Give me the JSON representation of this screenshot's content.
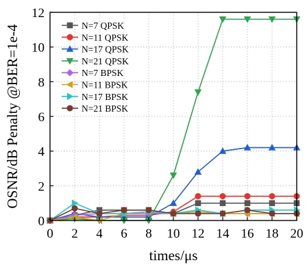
{
  "chart_data": {
    "type": "line",
    "xlabel": "times/μs",
    "ylabel": "OSNR/dB Penalty @BER=1e-4",
    "xlim": [
      0,
      20
    ],
    "ylim": [
      0,
      12
    ],
    "xticks": [
      0,
      2,
      4,
      6,
      8,
      10,
      12,
      14,
      16,
      18,
      20
    ],
    "yticks": [
      0,
      2,
      4,
      6,
      8,
      10,
      12
    ],
    "grid": true,
    "legend_position": "top-left",
    "x": [
      0,
      2,
      4,
      6,
      8,
      10,
      12,
      14,
      16,
      18,
      20
    ],
    "series": [
      {
        "name": "N=7   QPSK",
        "color": "#555555",
        "marker": "square",
        "values": [
          0,
          0.3,
          0.6,
          0.6,
          0.6,
          0.4,
          1.0,
          1.0,
          1.0,
          1.0,
          1.0
        ]
      },
      {
        "name": "N=11  QPSK",
        "color": "#e8322e",
        "marker": "circle",
        "values": [
          0,
          0.2,
          0.2,
          0.3,
          0.3,
          0.5,
          1.4,
          1.4,
          1.4,
          1.4,
          1.4
        ]
      },
      {
        "name": "N=17  QPSK",
        "color": "#1f5fd6",
        "marker": "triangle-up",
        "values": [
          0,
          0.4,
          0.2,
          0.2,
          0.2,
          1.0,
          2.8,
          4.0,
          4.2,
          4.2,
          4.2
        ]
      },
      {
        "name": "N=21  QPSK",
        "color": "#2ea64f",
        "marker": "triangle-down",
        "values": [
          0,
          0.1,
          0.0,
          0.0,
          0.0,
          2.6,
          7.4,
          11.6,
          11.6,
          11.6,
          11.6
        ]
      },
      {
        "name": "N=7   BPSK",
        "color": "#b65cf0",
        "marker": "diamond",
        "values": [
          0,
          0.3,
          0.4,
          0.4,
          0.4,
          0.4,
          0.4,
          0.4,
          0.4,
          0.4,
          0.4
        ]
      },
      {
        "name": "N=11  BPSK",
        "color": "#d4a017",
        "marker": "triangle-left",
        "values": [
          0,
          0.2,
          0.0,
          0.4,
          0.5,
          0.4,
          0.5,
          0.4,
          0.4,
          0.4,
          0.4
        ]
      },
      {
        "name": "N=17  BPSK",
        "color": "#1ec8c8",
        "marker": "triangle-right",
        "values": [
          0,
          1.0,
          0.4,
          0.4,
          0.5,
          0.4,
          0.6,
          0.4,
          0.6,
          0.6,
          0.6
        ]
      },
      {
        "name": "N=21  BPSK",
        "color": "#7a3b2e",
        "marker": "circle",
        "values": [
          0,
          0.7,
          0.4,
          0.6,
          0.6,
          0.4,
          0.4,
          0.4,
          0.6,
          0.4,
          0.4
        ]
      }
    ]
  }
}
